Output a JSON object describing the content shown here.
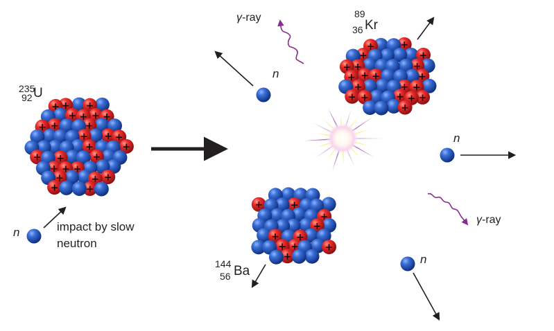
{
  "uranium": {
    "mass": "235",
    "atomic": "92",
    "symbol": "U"
  },
  "krypton": {
    "mass": "89",
    "atomic": "36",
    "symbol": "Kr"
  },
  "barium": {
    "mass": "144",
    "atomic": "56",
    "symbol": "Ba"
  },
  "neutron_symbol": "n",
  "gamma_symbol": "γ",
  "gamma_suffix": "-ray",
  "impact_line1": "impact by slow",
  "impact_line2": "neutron",
  "proton_sign": "+",
  "colors": {
    "proton": "#e8262a",
    "neutron": "#2553b5",
    "gamma_wave": "#8a2b8f",
    "arrow": "#231f20",
    "flash_core": "#ffffff",
    "flash_yellow": "#f4f07a",
    "flash_purple": "#b06ab3"
  },
  "icons": {
    "proton": "red-sphere-with-plus",
    "neutron": "blue-sphere",
    "gamma": "wavy-arrow",
    "flash": "starburst"
  }
}
